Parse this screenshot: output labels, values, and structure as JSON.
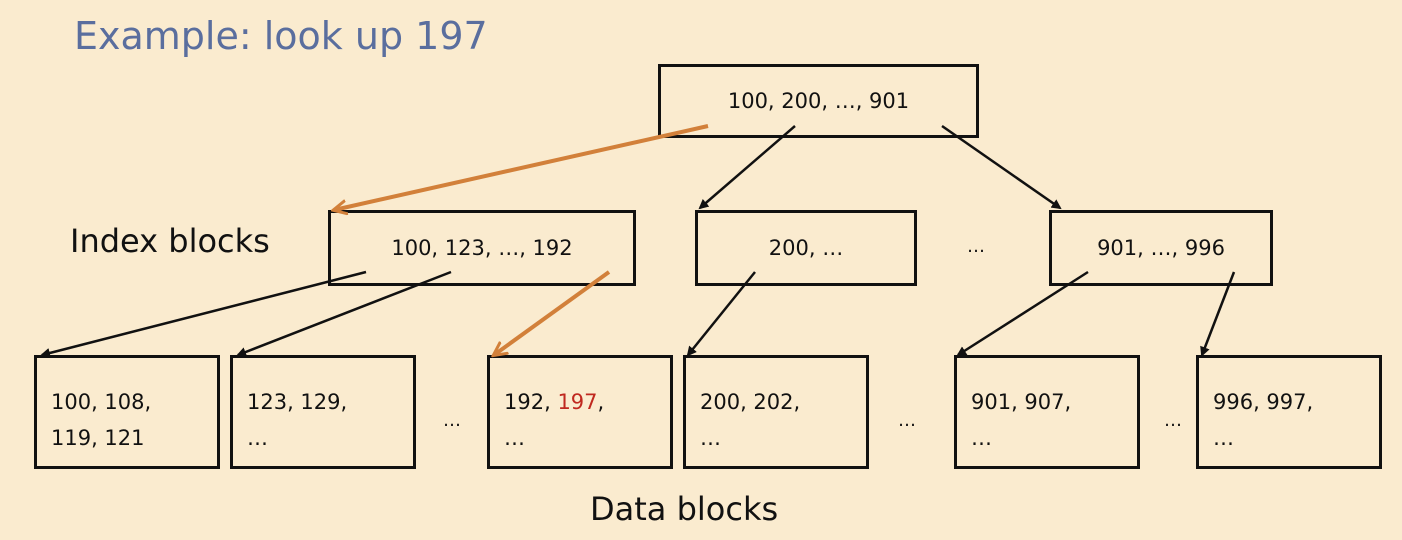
{
  "title": "Example: look up 197",
  "labels": {
    "index": "Index blocks",
    "data": "Data blocks"
  },
  "root": {
    "text": "100, 200, …, 901"
  },
  "index_blocks": [
    {
      "text": "100, 123, …, 192"
    },
    {
      "text": "200, …"
    },
    {
      "text": "901, …, 996"
    }
  ],
  "index_ellipsis": "…",
  "data_blocks": [
    {
      "line1": "100, 108,",
      "line2": "119, 121"
    },
    {
      "line1": "123, 129,",
      "line2": "…"
    },
    {
      "line1_pre": "192, ",
      "line1_hl": "197",
      "line1_post": ",",
      "line2": "…"
    },
    {
      "line1": "200, 202,",
      "line2": "…"
    },
    {
      "line1": "901, 907,",
      "line2": "…"
    },
    {
      "line1": "996, 997,",
      "line2": "…"
    }
  ],
  "data_ellipses": [
    "…",
    "…",
    "…"
  ],
  "colors": {
    "background": "#faebcf",
    "title": "#5a6e9e",
    "search_path": "#d2803a",
    "highlight": "#c0281f"
  }
}
